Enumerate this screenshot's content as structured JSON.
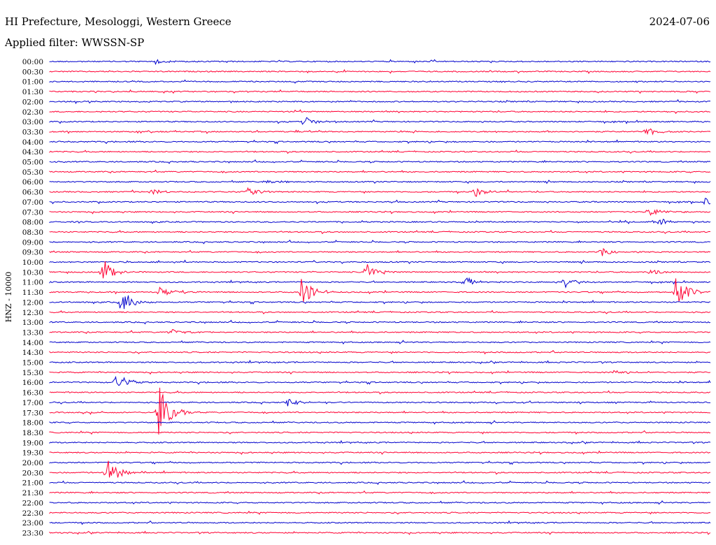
{
  "header": {
    "station": "HI Prefecture, Mesologgi, Western Greece",
    "date": "2024-07-06",
    "filter": "Applied filter: WWSSN-SP"
  },
  "chart_data": {
    "type": "line",
    "title": "HI Prefecture, Mesologgi, Western Greece",
    "ylabel": "HNZ - 10000",
    "rows": [
      "00:00",
      "00:30",
      "01:00",
      "01:30",
      "02:00",
      "02:30",
      "03:00",
      "03:30",
      "04:00",
      "04:30",
      "05:00",
      "05:30",
      "06:00",
      "06:30",
      "07:00",
      "07:30",
      "08:00",
      "08:30",
      "09:00",
      "09:30",
      "10:00",
      "10:30",
      "11:00",
      "11:30",
      "12:00",
      "12:30",
      "13:00",
      "13:30",
      "14:00",
      "14:30",
      "15:00",
      "15:30",
      "16:00",
      "16:30",
      "17:00",
      "17:30",
      "18:00",
      "18:30",
      "19:00",
      "19:30",
      "20:00",
      "20:30",
      "21:00",
      "21:30",
      "22:00",
      "22:30",
      "23:00",
      "23:30"
    ],
    "trace_colors": [
      "#0000cc",
      "#ff0033"
    ],
    "x_range_minutes": [
      0,
      30
    ],
    "events": [
      {
        "row": 0,
        "minute": 4.8,
        "amplitude": 0.35
      },
      {
        "row": 6,
        "minute": 11.6,
        "amplitude": 0.65
      },
      {
        "row": 7,
        "minute": 27.1,
        "amplitude": 0.55
      },
      {
        "row": 12,
        "minute": 9.8,
        "amplitude": 0.35
      },
      {
        "row": 13,
        "minute": 4.6,
        "amplitude": 0.35
      },
      {
        "row": 13,
        "minute": 9.0,
        "amplitude": 0.55
      },
      {
        "row": 13,
        "minute": 19.3,
        "amplitude": 0.6
      },
      {
        "row": 14,
        "minute": 29.7,
        "amplitude": 0.55
      },
      {
        "row": 15,
        "minute": 27.2,
        "amplitude": 0.55
      },
      {
        "row": 16,
        "minute": 27.7,
        "amplitude": 0.45
      },
      {
        "row": 19,
        "minute": 25.0,
        "amplitude": 0.6
      },
      {
        "row": 21,
        "minute": 2.4,
        "amplitude": 1.8
      },
      {
        "row": 21,
        "minute": 14.4,
        "amplitude": 1.0
      },
      {
        "row": 21,
        "minute": 27.3,
        "amplitude": 0.5
      },
      {
        "row": 22,
        "minute": 18.9,
        "amplitude": 0.55
      },
      {
        "row": 22,
        "minute": 23.4,
        "amplitude": 0.6
      },
      {
        "row": 23,
        "minute": 5.0,
        "amplitude": 0.6
      },
      {
        "row": 23,
        "minute": 11.4,
        "amplitude": 2.0
      },
      {
        "row": 23,
        "minute": 28.4,
        "amplitude": 2.0
      },
      {
        "row": 24,
        "minute": 3.2,
        "amplitude": 1.7
      },
      {
        "row": 27,
        "minute": 5.5,
        "amplitude": 0.4
      },
      {
        "row": 32,
        "minute": 3.0,
        "amplitude": 1.2
      },
      {
        "row": 34,
        "minute": 10.8,
        "amplitude": 0.5
      },
      {
        "row": 35,
        "minute": 4.9,
        "amplitude": 4.0
      },
      {
        "row": 31,
        "minute": 25.7,
        "amplitude": 0.5
      },
      {
        "row": 41,
        "minute": 2.6,
        "amplitude": 1.9
      }
    ]
  }
}
